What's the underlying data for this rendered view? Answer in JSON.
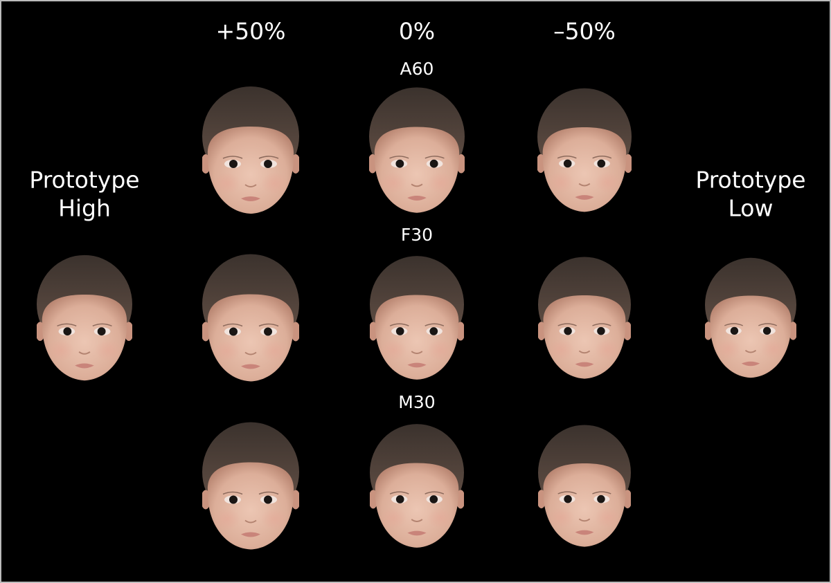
{
  "column_headers": [
    "+50%",
    "0%",
    "–50%"
  ],
  "row_labels": [
    "A60",
    "F30",
    "M30"
  ],
  "prototype_high": [
    "Prototype",
    "High"
  ],
  "prototype_low": [
    "Prototype",
    "Low"
  ]
}
